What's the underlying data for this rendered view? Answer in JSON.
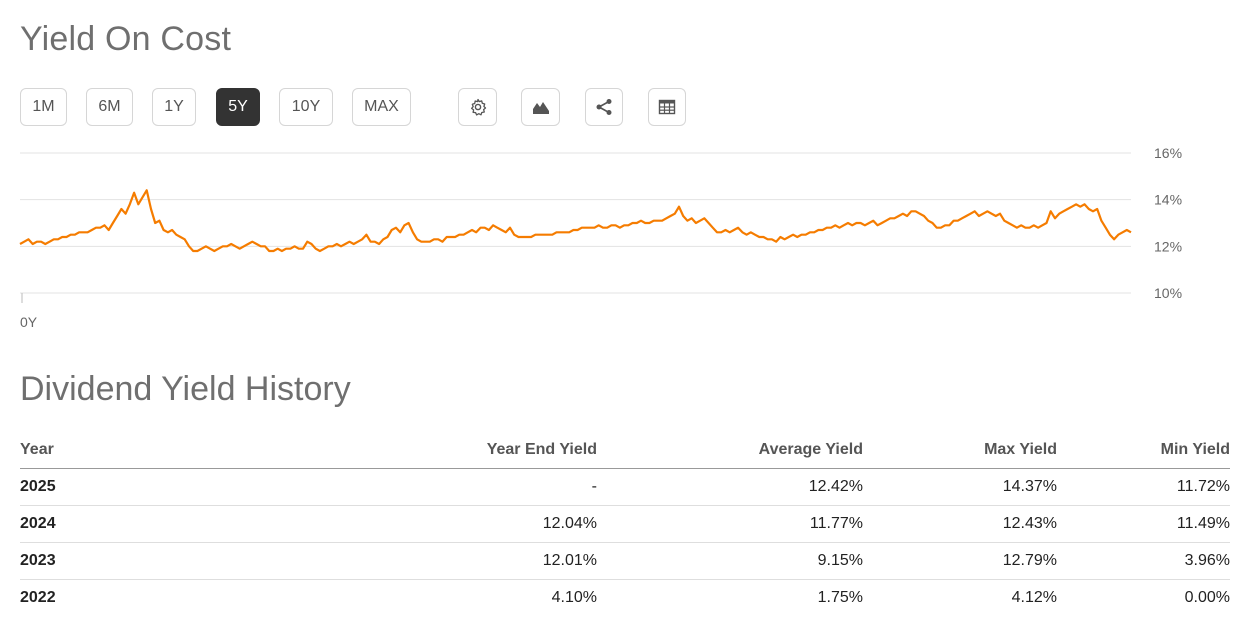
{
  "header": {
    "title": "Yield On Cost"
  },
  "range_buttons": [
    {
      "label": "1M",
      "active": false
    },
    {
      "label": "6M",
      "active": false
    },
    {
      "label": "1Y",
      "active": false
    },
    {
      "label": "5Y",
      "active": true
    },
    {
      "label": "10Y",
      "active": false
    },
    {
      "label": "MAX",
      "active": false
    }
  ],
  "tool_icons": [
    "gear-icon",
    "mountain-chart-icon",
    "share-icon",
    "table-icon"
  ],
  "chart_data": {
    "type": "line",
    "y_tick_labels": [
      "16%",
      "14%",
      "12%",
      "10%"
    ],
    "ylim": [
      10,
      16
    ],
    "x_tick_labels": [
      "0Y"
    ],
    "line_color": "#f57c00",
    "grid": true,
    "series": [
      {
        "values": [
          12.1,
          12.2,
          12.3,
          12.1,
          12.2,
          12.2,
          12.1,
          12.2,
          12.3,
          12.3,
          12.4,
          12.4,
          12.5,
          12.5,
          12.6,
          12.6,
          12.6,
          12.7,
          12.8,
          12.8,
          12.9,
          12.7,
          13.0,
          13.3,
          13.6,
          13.4,
          13.8,
          14.3,
          13.8,
          14.1,
          14.4,
          13.6,
          13.0,
          13.1,
          12.7,
          12.6,
          12.7,
          12.5,
          12.4,
          12.3,
          12.0,
          11.8,
          11.8,
          11.9,
          12.0,
          11.9,
          11.8,
          11.9,
          12.0,
          12.0,
          12.1,
          12.0,
          11.9,
          12.0,
          12.1,
          12.2,
          12.1,
          12.0,
          12.0,
          11.8,
          11.8,
          11.9,
          11.8,
          11.9,
          11.9,
          12.0,
          11.9,
          11.9,
          12.2,
          12.1,
          11.9,
          11.8,
          11.9,
          12.0,
          12.0,
          12.1,
          12.0,
          12.1,
          12.2,
          12.1,
          12.2,
          12.3,
          12.5,
          12.2,
          12.2,
          12.1,
          12.3,
          12.4,
          12.7,
          12.8,
          12.6,
          12.9,
          13.0,
          12.6,
          12.3,
          12.2,
          12.2,
          12.2,
          12.3,
          12.3,
          12.2,
          12.4,
          12.4,
          12.4,
          12.5,
          12.5,
          12.6,
          12.7,
          12.6,
          12.8,
          12.8,
          12.7,
          12.9,
          12.8,
          12.7,
          12.6,
          12.8,
          12.5,
          12.4,
          12.4,
          12.4,
          12.4,
          12.5,
          12.5,
          12.5,
          12.5,
          12.5,
          12.6,
          12.6,
          12.6,
          12.6,
          12.7,
          12.7,
          12.8,
          12.8,
          12.8,
          12.8,
          12.9,
          12.8,
          12.8,
          12.9,
          12.9,
          12.8,
          12.9,
          12.9,
          13.0,
          13.0,
          13.1,
          13.0,
          13.0,
          13.1,
          13.1,
          13.1,
          13.2,
          13.3,
          13.4,
          13.7,
          13.3,
          13.1,
          13.2,
          13.0,
          13.1,
          13.2,
          13.0,
          12.8,
          12.6,
          12.6,
          12.7,
          12.6,
          12.7,
          12.8,
          12.6,
          12.5,
          12.6,
          12.5,
          12.4,
          12.4,
          12.3,
          12.3,
          12.2,
          12.4,
          12.3,
          12.4,
          12.5,
          12.4,
          12.5,
          12.5,
          12.6,
          12.6,
          12.7,
          12.7,
          12.8,
          12.8,
          12.9,
          12.8,
          12.9,
          13.0,
          12.9,
          13.0,
          13.0,
          12.9,
          13.0,
          13.1,
          12.9,
          13.0,
          13.1,
          13.2,
          13.2,
          13.3,
          13.4,
          13.3,
          13.5,
          13.5,
          13.4,
          13.3,
          13.1,
          13.0,
          12.8,
          12.8,
          12.9,
          12.9,
          13.1,
          13.1,
          13.2,
          13.3,
          13.4,
          13.5,
          13.3,
          13.4,
          13.5,
          13.4,
          13.3,
          13.4,
          13.1,
          13.0,
          12.9,
          12.8,
          12.9,
          12.8,
          12.8,
          12.9,
          12.8,
          12.9,
          13.0,
          13.5,
          13.2,
          13.4,
          13.5,
          13.6,
          13.7,
          13.8,
          13.7,
          13.8,
          13.6,
          13.5,
          13.6,
          13.1,
          12.8,
          12.5,
          12.3,
          12.5,
          12.6,
          12.7,
          12.6
        ]
      }
    ]
  },
  "history": {
    "title": "Dividend Yield History",
    "columns": [
      "Year",
      "Year End Yield",
      "Average Yield",
      "Max Yield",
      "Min Yield"
    ],
    "rows": [
      [
        "2025",
        "-",
        "12.42%",
        "14.37%",
        "11.72%"
      ],
      [
        "2024",
        "12.04%",
        "11.77%",
        "12.43%",
        "11.49%"
      ],
      [
        "2023",
        "12.01%",
        "9.15%",
        "12.79%",
        "3.96%"
      ],
      [
        "2022",
        "4.10%",
        "1.75%",
        "4.12%",
        "0.00%"
      ]
    ]
  }
}
